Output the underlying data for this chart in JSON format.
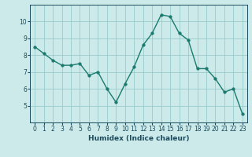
{
  "x": [
    0,
    1,
    2,
    3,
    4,
    5,
    6,
    7,
    8,
    9,
    10,
    11,
    12,
    13,
    14,
    15,
    16,
    17,
    18,
    19,
    20,
    21,
    22,
    23
  ],
  "y": [
    8.5,
    8.1,
    7.7,
    7.4,
    7.4,
    7.5,
    6.8,
    7.0,
    6.0,
    5.2,
    6.3,
    7.3,
    8.6,
    9.3,
    10.4,
    10.3,
    9.3,
    8.9,
    7.2,
    7.2,
    6.6,
    5.8,
    6.0,
    4.5
  ],
  "xlabel": "Humidex (Indice chaleur)",
  "ylim": [
    4.0,
    11.0
  ],
  "xlim": [
    -0.5,
    23.5
  ],
  "yticks": [
    5,
    6,
    7,
    8,
    9,
    10
  ],
  "xticks": [
    0,
    1,
    2,
    3,
    4,
    5,
    6,
    7,
    8,
    9,
    10,
    11,
    12,
    13,
    14,
    15,
    16,
    17,
    18,
    19,
    20,
    21,
    22,
    23
  ],
  "line_color": "#1a7a6e",
  "marker_color": "#1a7a6e",
  "bg_color": "#cceaea",
  "grid_color": "#99cccc",
  "xlabel_color": "#1a4a5c",
  "tick_color": "#1a4a5c",
  "linewidth": 1.0,
  "markersize": 2.5,
  "xlabel_fontsize": 6.5,
  "tick_fontsize": 5.5
}
